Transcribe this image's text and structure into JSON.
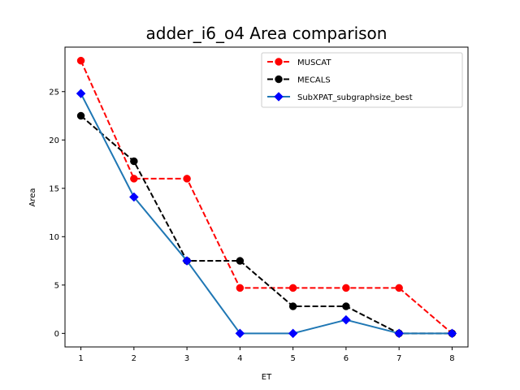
{
  "chart_data": {
    "type": "line",
    "title": "adder_i6_o4 Area comparison",
    "xlabel": "ET",
    "ylabel": "Area",
    "x": [
      1,
      2,
      3,
      4,
      5,
      6,
      7,
      8
    ],
    "xlim": [
      0.7,
      8.3
    ],
    "ylim": [
      -1.4,
      29.6
    ],
    "xticks": [
      1,
      2,
      3,
      4,
      5,
      6,
      7,
      8
    ],
    "yticks": [
      0,
      5,
      10,
      15,
      20,
      25
    ],
    "grid": false,
    "legend_position": "top-right",
    "series": [
      {
        "name": "MUSCAT",
        "color": "#ff0000",
        "linestyle": "dashed",
        "marker": "circle",
        "values": [
          28.2,
          16.0,
          16.0,
          4.7,
          4.7,
          4.7,
          4.7,
          0.0
        ]
      },
      {
        "name": "MECALS",
        "color": "#000000",
        "linestyle": "dashed",
        "marker": "circle",
        "values": [
          22.5,
          17.8,
          7.5,
          7.5,
          2.8,
          2.8,
          0.0,
          0.0
        ]
      },
      {
        "name": "SubXPAT_subgraphsize_best",
        "color": "#1f77b4",
        "linestyle": "solid",
        "marker": "diamond",
        "marker_color": "#0000ff",
        "values": [
          24.8,
          14.1,
          7.5,
          0.0,
          0.0,
          1.4,
          0.0,
          0.0
        ]
      }
    ]
  }
}
